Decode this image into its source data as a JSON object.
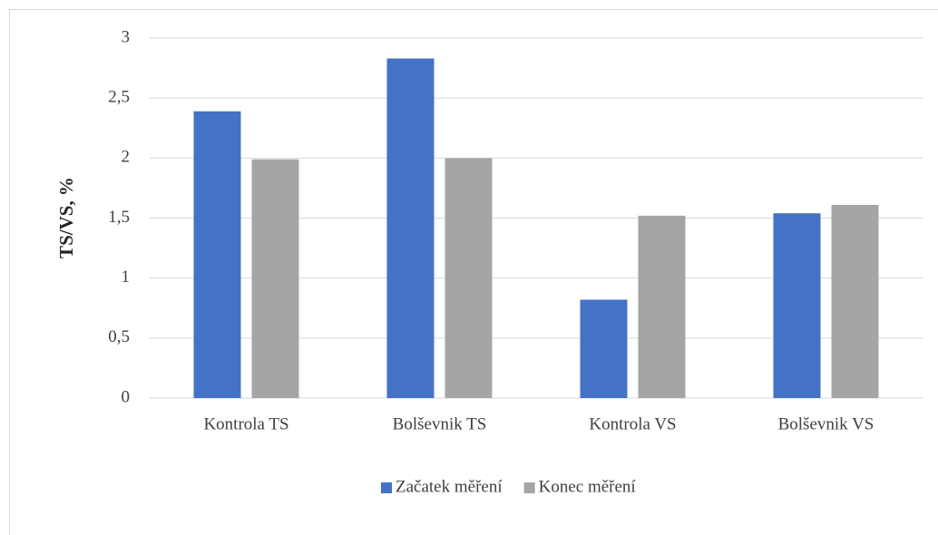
{
  "chart_data": {
    "type": "bar",
    "y_label": "TS/VS, %",
    "categories": [
      "Kontrola TS",
      "Bolševnik TS",
      "Kontrola VS",
      "Bolševnik VS"
    ],
    "series": [
      {
        "name": "Začatek měření",
        "color": "#4472c4",
        "values": [
          2.39,
          2.83,
          0.82,
          1.54
        ]
      },
      {
        "name": "Konec měření",
        "color": "#a5a5a5",
        "values": [
          1.99,
          2.0,
          1.52,
          1.61
        ]
      }
    ],
    "ylim": [
      0,
      3
    ],
    "yticks": [
      0,
      {
        "value": 0.5,
        "label": "0,5"
      },
      1,
      {
        "value": 1.5,
        "label": "1,5"
      },
      2,
      {
        "value": 2.5,
        "label": "2,5"
      },
      3
    ],
    "grid": true,
    "legend": "bottom"
  }
}
